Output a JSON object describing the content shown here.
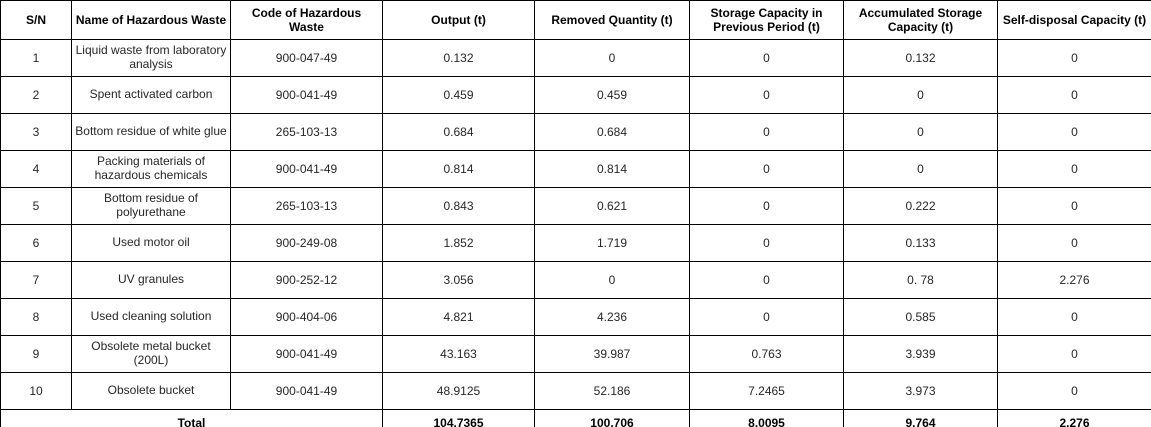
{
  "table": {
    "headers": [
      "S/N",
      "Name of Hazardous Waste",
      "Code of Hazardous Waste",
      "Output (t)",
      "Removed Quantity (t)",
      "Storage Capacity in Previous Period (t)",
      "Accumulated Storage Capacity (t)",
      "Self-disposal Capacity (t)"
    ],
    "rows": [
      [
        "1",
        "Liquid waste from laboratory analysis",
        "900-047-49",
        "0.132",
        "0",
        "0",
        "0.132",
        "0"
      ],
      [
        "2",
        "Spent activated carbon",
        "900-041-49",
        "0.459",
        "0.459",
        "0",
        "0",
        "0"
      ],
      [
        "3",
        "Bottom residue of white glue",
        "265-103-13",
        "0.684",
        "0.684",
        "0",
        "0",
        "0"
      ],
      [
        "4",
        "Packing materials of hazardous chemicals",
        "900-041-49",
        "0.814",
        "0.814",
        "0",
        "0",
        "0"
      ],
      [
        "5",
        "Bottom residue of polyurethane",
        "265-103-13",
        "0.843",
        "0.621",
        "0",
        "0.222",
        "0"
      ],
      [
        "6",
        "Used motor oil",
        "900-249-08",
        "1.852",
        "1.719",
        "0",
        "0.133",
        "0"
      ],
      [
        "7",
        "UV granules",
        "900-252-12",
        "3.056",
        "0",
        "0",
        "0. 78",
        "2.276"
      ],
      [
        "8",
        "Used cleaning solution",
        "900-404-06",
        "4.821",
        "4.236",
        "0",
        "0.585",
        "0"
      ],
      [
        "9",
        "Obsolete metal bucket (200L)",
        "900-041-49",
        "43.163",
        "39.987",
        "0.763",
        "3.939",
        "0"
      ],
      [
        "10",
        "Obsolete bucket",
        "900-041-49",
        "48.9125",
        "52.186",
        "7.2465",
        "3.973",
        "0"
      ]
    ],
    "total": {
      "label": "Total",
      "values": [
        "104.7365",
        "100.706",
        "8.0095",
        "9.764",
        "2.276"
      ]
    },
    "colors": {
      "border": "#000000",
      "header_text": "#000000",
      "cell_text": "#262626",
      "background": "#ffffff"
    }
  }
}
